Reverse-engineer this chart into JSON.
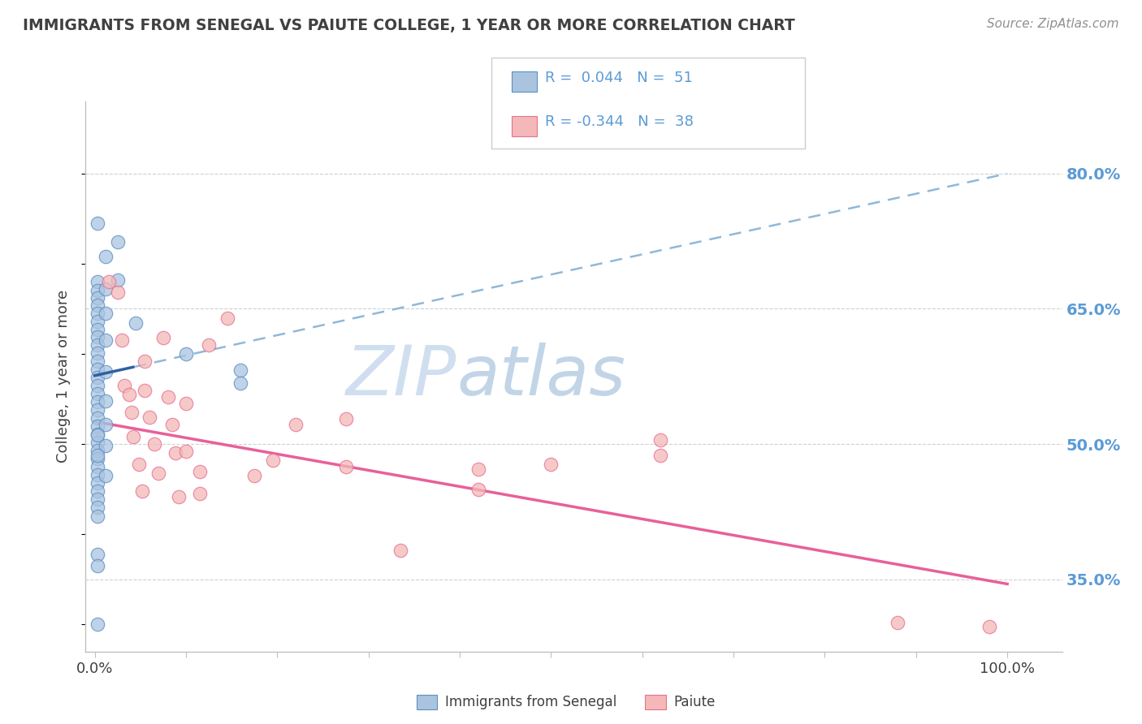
{
  "title": "IMMIGRANTS FROM SENEGAL VS PAIUTE COLLEGE, 1 YEAR OR MORE CORRELATION CHART",
  "source": "Source: ZipAtlas.com",
  "ylabel": "College, 1 year or more",
  "legend_labels": [
    "Immigrants from Senegal",
    "Paiute"
  ],
  "legend_r_blue": "R =  0.044",
  "legend_n_blue": "N =  51",
  "legend_r_pink": "R = -0.344",
  "legend_n_pink": "N =  38",
  "ytick_labels": [
    "35.0%",
    "50.0%",
    "65.0%",
    "80.0%"
  ],
  "ytick_values": [
    0.35,
    0.5,
    0.65,
    0.8
  ],
  "xtick_labels": [
    "0.0%",
    "100.0%"
  ],
  "xtick_values": [
    0.0,
    1.0
  ],
  "xlim": [
    -0.01,
    1.06
  ],
  "ylim": [
    0.27,
    0.88
  ],
  "blue_face": "#aac4e0",
  "blue_edge": "#5b8fc4",
  "pink_face": "#f4b8b8",
  "pink_edge": "#e87090",
  "blue_line_solid": "#3060a0",
  "blue_line_dash": "#90b8d8",
  "pink_line": "#e8609a",
  "grid_color": "#d0d0d0",
  "right_tick_color": "#5b9bd5",
  "title_color": "#404040",
  "source_color": "#909090",
  "blue_scatter_x": [
    0.003,
    0.003,
    0.003,
    0.003,
    0.003,
    0.003,
    0.003,
    0.003,
    0.003,
    0.003,
    0.003,
    0.003,
    0.003,
    0.003,
    0.003,
    0.003,
    0.003,
    0.003,
    0.003,
    0.003,
    0.003,
    0.003,
    0.003,
    0.003,
    0.003,
    0.003,
    0.003,
    0.003,
    0.003,
    0.003,
    0.003,
    0.003,
    0.012,
    0.012,
    0.012,
    0.012,
    0.012,
    0.012,
    0.012,
    0.012,
    0.012,
    0.025,
    0.025,
    0.045,
    0.1,
    0.16,
    0.16,
    0.003,
    0.003,
    0.003,
    0.003
  ],
  "blue_scatter_y": [
    0.745,
    0.68,
    0.67,
    0.662,
    0.654,
    0.645,
    0.636,
    0.627,
    0.619,
    0.61,
    0.601,
    0.592,
    0.583,
    0.574,
    0.565,
    0.556,
    0.547,
    0.538,
    0.529,
    0.52,
    0.511,
    0.502,
    0.493,
    0.484,
    0.475,
    0.466,
    0.457,
    0.448,
    0.439,
    0.43,
    0.378,
    0.3,
    0.708,
    0.672,
    0.645,
    0.615,
    0.58,
    0.548,
    0.522,
    0.498,
    0.465,
    0.724,
    0.682,
    0.634,
    0.6,
    0.582,
    0.568,
    0.51,
    0.488,
    0.42,
    0.365
  ],
  "pink_scatter_x": [
    0.015,
    0.025,
    0.03,
    0.032,
    0.038,
    0.04,
    0.042,
    0.048,
    0.052,
    0.055,
    0.055,
    0.06,
    0.065,
    0.07,
    0.075,
    0.08,
    0.085,
    0.088,
    0.092,
    0.1,
    0.1,
    0.115,
    0.115,
    0.125,
    0.145,
    0.175,
    0.195,
    0.22,
    0.275,
    0.275,
    0.335,
    0.42,
    0.42,
    0.5,
    0.62,
    0.62,
    0.88,
    0.98
  ],
  "pink_scatter_y": [
    0.68,
    0.668,
    0.615,
    0.565,
    0.555,
    0.535,
    0.508,
    0.478,
    0.448,
    0.592,
    0.56,
    0.53,
    0.5,
    0.468,
    0.618,
    0.552,
    0.522,
    0.49,
    0.442,
    0.545,
    0.492,
    0.47,
    0.445,
    0.61,
    0.64,
    0.465,
    0.482,
    0.522,
    0.528,
    0.475,
    0.382,
    0.472,
    0.45,
    0.478,
    0.505,
    0.488,
    0.302,
    0.298
  ],
  "background_color": "#ffffff"
}
